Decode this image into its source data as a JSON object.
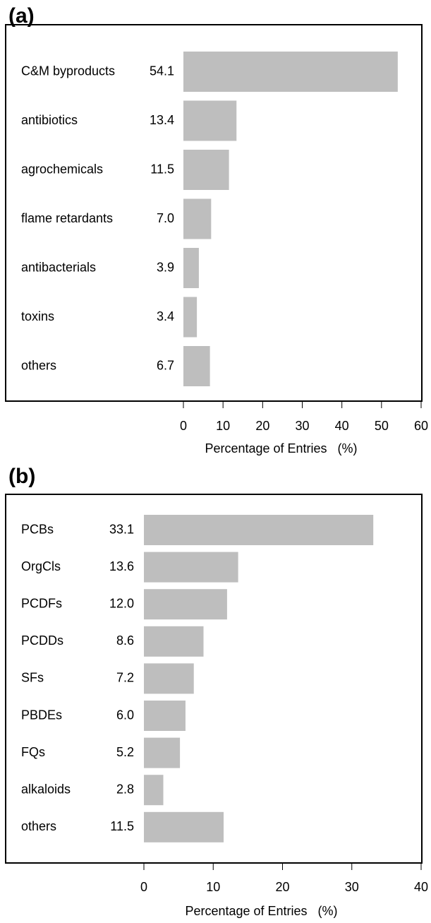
{
  "chart_data": [
    {
      "type": "bar",
      "orientation": "horizontal",
      "label": "(a)",
      "x_label": "Percentage of Entries   (%)",
      "categories": [
        "C&M byproducts",
        "antibiotics",
        "agrochemicals",
        "flame retardants",
        "antibacterials",
        "toxins",
        "others"
      ],
      "values": [
        54.1,
        13.4,
        11.5,
        7.0,
        3.9,
        3.4,
        6.7
      ],
      "value_labels": [
        "54.1",
        "13.4",
        "11.5",
        "7.0",
        "3.9",
        "3.4",
        "6.7"
      ],
      "color": "#bebebe",
      "xlim": [
        0,
        60
      ],
      "xticks": [
        0,
        10,
        20,
        30,
        40,
        50,
        60
      ]
    },
    {
      "type": "bar",
      "orientation": "horizontal",
      "label": "(b)",
      "x_label": "Percentage of Entries   (%)",
      "categories": [
        "PCBs",
        "OrgCls",
        "PCDFs",
        "PCDDs",
        "SFs",
        "PBDEs",
        "FQs",
        "alkaloids",
        "others"
      ],
      "values": [
        33.1,
        13.6,
        12.0,
        8.6,
        7.2,
        6.0,
        5.2,
        2.8,
        11.5
      ],
      "value_labels": [
        "33.1",
        "13.6",
        "12.0",
        "8.6",
        "7.2",
        "6.0",
        "5.2",
        "2.8",
        "11.5"
      ],
      "color": "#bebebe",
      "xlim": [
        0,
        40
      ],
      "xticks": [
        0,
        10,
        20,
        30,
        40
      ]
    }
  ]
}
